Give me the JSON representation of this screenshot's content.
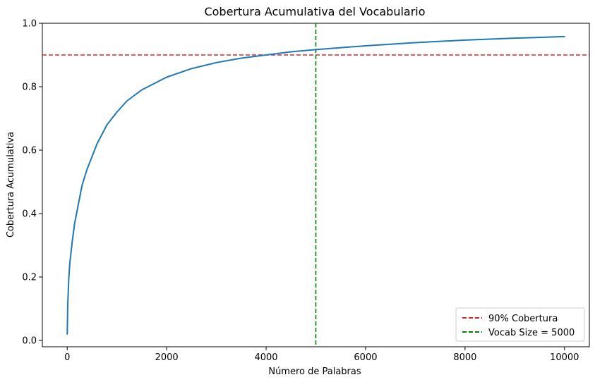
{
  "chart_data": {
    "type": "line",
    "title": "Cobertura Acumulativa del Vocabulario",
    "xlabel": "Número de Palabras",
    "ylabel": "Cobertura Acumulativa",
    "xlim": [
      -500,
      10500
    ],
    "ylim": [
      -0.02,
      1.0
    ],
    "xticks": [
      0,
      2000,
      4000,
      6000,
      8000,
      10000
    ],
    "yticks": [
      0.0,
      0.2,
      0.4,
      0.6,
      0.8,
      1.0
    ],
    "xtick_labels": [
      "0",
      "2000",
      "4000",
      "6000",
      "8000",
      "10000"
    ],
    "ytick_labels": [
      "0.0",
      "0.2",
      "0.4",
      "0.6",
      "0.8",
      "1.0"
    ],
    "grid": false,
    "legend_position": "lower-right",
    "series": [
      {
        "color": "#1f77b4",
        "style": "solid",
        "x": [
          1,
          10,
          30,
          50,
          100,
          150,
          200,
          300,
          400,
          500,
          600,
          800,
          1000,
          1200,
          1500,
          2000,
          2500,
          3000,
          3500,
          4000,
          4500,
          5000,
          6000,
          7000,
          8000,
          9000,
          10000
        ],
        "y": [
          0.02,
          0.11,
          0.19,
          0.24,
          0.31,
          0.37,
          0.41,
          0.49,
          0.54,
          0.58,
          0.62,
          0.68,
          0.72,
          0.755,
          0.79,
          0.83,
          0.857,
          0.876,
          0.89,
          0.9,
          0.91,
          0.917,
          0.929,
          0.939,
          0.947,
          0.953,
          0.958
        ]
      }
    ],
    "reference_lines": [
      {
        "orientation": "horizontal",
        "value": 0.9,
        "color": "#d62728",
        "style": "dashed",
        "label": "90% Cobertura"
      },
      {
        "orientation": "vertical",
        "value": 5000,
        "color": "#008000",
        "style": "dashed",
        "label": "Vocab Size = 5000"
      }
    ]
  }
}
